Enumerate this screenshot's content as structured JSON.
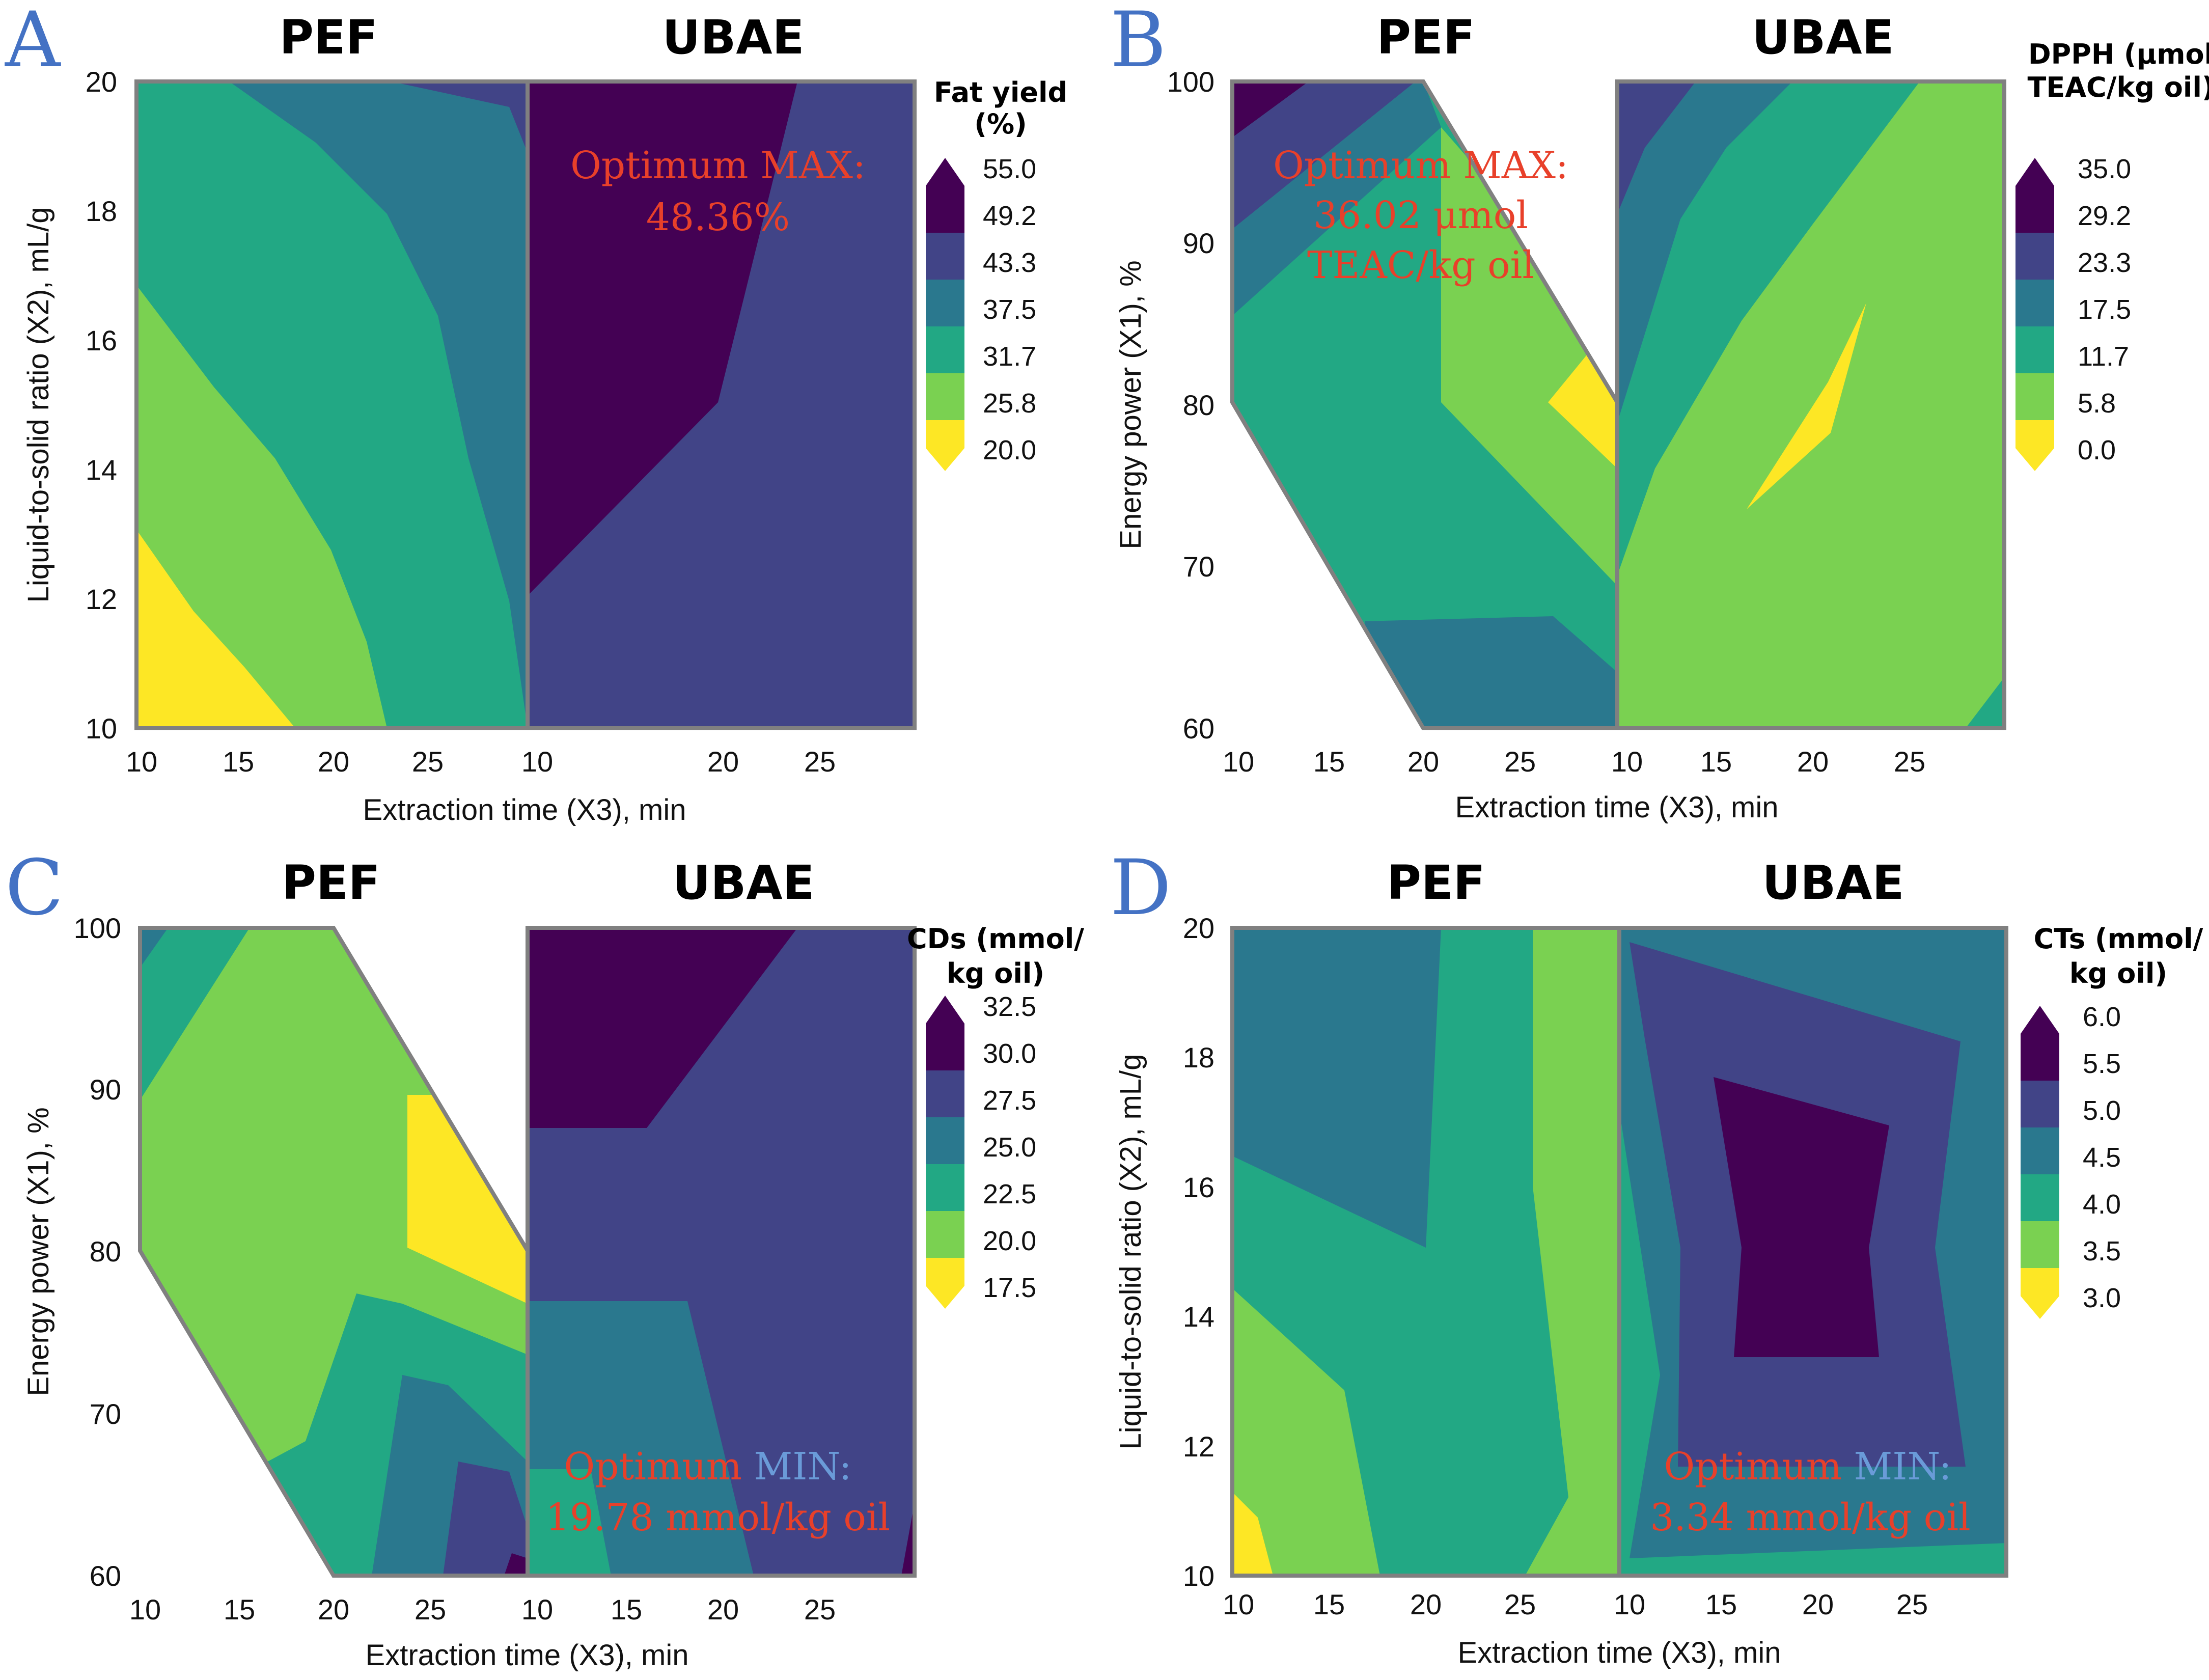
{
  "palette": {
    "bands": [
      "#fde725",
      "#7ad151",
      "#22a884",
      "#2a788e",
      "#414487",
      "#440154"
    ],
    "optimum_red": "#e8402a",
    "optimum_blue": "#6a9bd8",
    "letter_blue": "#4472c4",
    "frame_gray": "#808080"
  },
  "chart_data": [
    {
      "type": "contour",
      "panel": "A",
      "methods": [
        "PEF",
        "UBAE"
      ],
      "xlabel": "Extraction time (X3), min",
      "ylabel": "Liquid-to-solid ratio (X2), mL/g",
      "x_ticks": [
        "10",
        "15",
        "20",
        "25"
      ],
      "y_ticks": [
        "10",
        "12",
        "14",
        "16",
        "18",
        "20"
      ],
      "legend_title": [
        "Fat yield",
        "(%)"
      ],
      "legend_levels": [
        "55.0",
        "49.2",
        "43.3",
        "37.5",
        "31.7",
        "25.8",
        "20.0"
      ],
      "annotation": {
        "prefix": "Optimum",
        "word": "MAX:",
        "value_lines": [
          "48.36%"
        ],
        "word_color": "red"
      }
    },
    {
      "type": "contour",
      "panel": "B",
      "methods": [
        "PEF",
        "UBAE"
      ],
      "xlabel": "Extraction time (X3), min",
      "ylabel": "Energy power (X1), %",
      "x_ticks": [
        "10",
        "15",
        "20",
        "25"
      ],
      "y_ticks": [
        "60",
        "70",
        "80",
        "90",
        "100"
      ],
      "legend_title": [
        "DPPH (μmol",
        "TEAC/kg oil)"
      ],
      "legend_levels": [
        "35.0",
        "29.2",
        "23.3",
        "17.5",
        "11.7",
        "5.8",
        "0.0"
      ],
      "annotation": {
        "prefix": "Optimum",
        "word": "MAX:",
        "value_lines": [
          "36.02 μmol",
          "TEAC/kg oil"
        ],
        "word_color": "red"
      }
    },
    {
      "type": "contour",
      "panel": "C",
      "methods": [
        "PEF",
        "UBAE"
      ],
      "xlabel": "Extraction time (X3), min",
      "ylabel": "Energy power (X1), %",
      "x_ticks": [
        "10",
        "15",
        "20",
        "25"
      ],
      "y_ticks": [
        "60",
        "70",
        "80",
        "90",
        "100"
      ],
      "legend_title": [
        "CDs (mmol/",
        "kg oil)"
      ],
      "legend_levels": [
        "32.5",
        "30.0",
        "27.5",
        "25.0",
        "22.5",
        "20.0",
        "17.5"
      ],
      "annotation": {
        "prefix": "Optimum",
        "word": "MIN:",
        "value_lines": [
          "19.78 mmol/kg oil"
        ],
        "word_color": "blue"
      }
    },
    {
      "type": "contour",
      "panel": "D",
      "methods": [
        "PEF",
        "UBAE"
      ],
      "xlabel": "Extraction time (X3), min",
      "ylabel": "Liquid-to-solid ratio (X2), mL/g",
      "x_ticks": [
        "10",
        "15",
        "20",
        "25"
      ],
      "y_ticks": [
        "10",
        "12",
        "14",
        "16",
        "18",
        "20"
      ],
      "legend_title": [
        "CTs (mmol/",
        "kg oil)"
      ],
      "legend_levels": [
        "6.0",
        "5.5",
        "5.0",
        "4.5",
        "4.0",
        "3.5",
        "3.0"
      ],
      "annotation": {
        "prefix": "Optimum",
        "word": "MIN:",
        "value_lines": [
          "3.34 mmol/kg oil"
        ],
        "word_color": "blue"
      }
    }
  ]
}
